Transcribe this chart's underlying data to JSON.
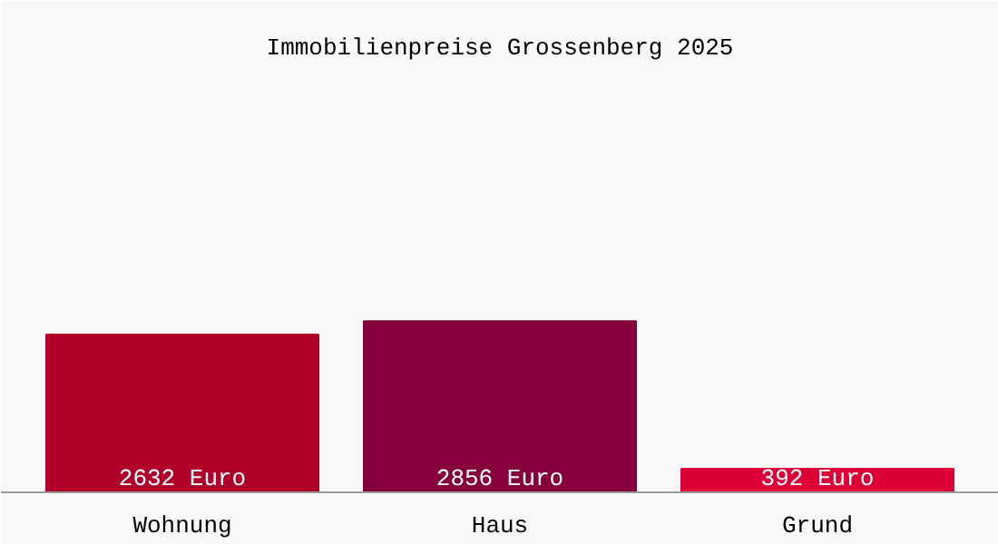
{
  "chart_data": {
    "type": "bar",
    "title": "Immobilienpreise Grossenberg 2025",
    "categories": [
      "Wohnung",
      "Haus",
      "Grund"
    ],
    "values": [
      2632,
      2856,
      392
    ],
    "colors": [
      "#b0002a",
      "#86003c",
      "#dc0037"
    ],
    "value_labels": [
      "2632 Euro",
      "2856 Euro",
      "392 Euro"
    ],
    "orientation": "vertical"
  }
}
